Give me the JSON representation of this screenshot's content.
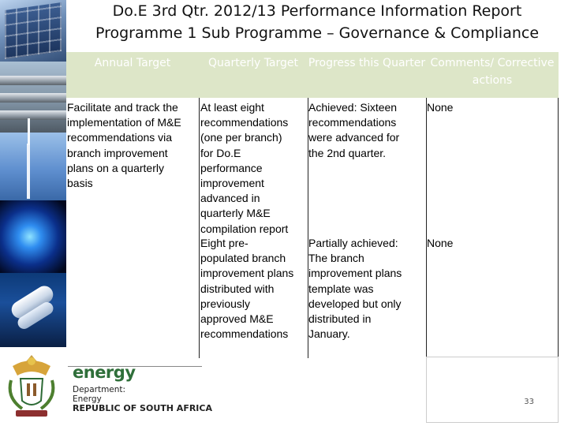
{
  "title": {
    "line1": "Do.E 3rd Qtr. 2012/13 Performance Information Report",
    "line2": "Programme 1 Sub Programme – Governance & Compliance"
  },
  "table": {
    "headers": [
      "Annual Target",
      "Quarterly Target",
      "Progress this Quarter",
      "Comments/ Corrective actions"
    ],
    "annual_target": "Facilitate and track the\nimplementation of M&E\nrecommendations via\nbranch improvement\nplans on a quarterly\nbasis",
    "rows": [
      {
        "quarterly_target": "At least eight\nrecommendations\n(one per branch)\nfor Do.E\nperformance\nimprovement\nadvanced in\nquarterly M&E\ncompilation report",
        "progress": "Achieved: Sixteen\nrecommendations\nwere advanced for\nthe 2nd quarter.",
        "comments": "None"
      },
      {
        "quarterly_target": "Eight pre-\npopulated branch\nimprovement plans\ndistributed with\npreviously\napproved M&E\nrecommendations",
        "progress": "Partially achieved:\nThe branch\nimprovement plans\ntemplate was\ndeveloped but only\ndistributed in\nJanuary.",
        "comments": "None"
      }
    ]
  },
  "footer": {
    "brand": "energy",
    "dept_label": "Department:",
    "dept_name": "Energy",
    "country": "REPUBLIC OF SOUTH AFRICA",
    "page_number": "33"
  },
  "colors": {
    "header_bg": "#dde6c8",
    "brand_green": "#2f6f3a"
  },
  "icons": [
    "solar-panel-image",
    "pipeline-image",
    "wind-turbine-image",
    "gas-flame-image",
    "cfl-bulb-image",
    "coat-of-arms-icon"
  ]
}
